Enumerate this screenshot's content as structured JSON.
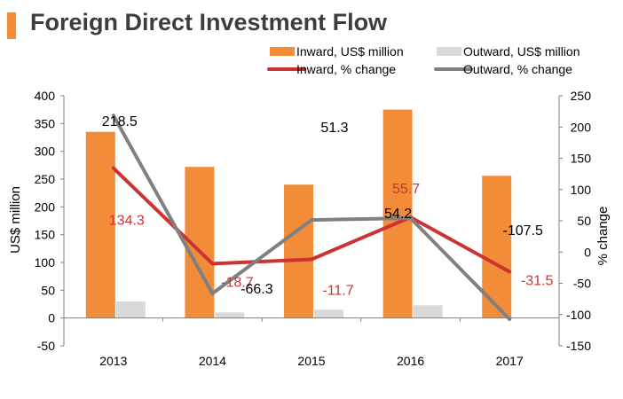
{
  "header": {
    "title": "Foreign Direct Investment Flow"
  },
  "colors": {
    "accent": "#f28c38",
    "inward_bar": "#f28c38",
    "outward_bar": "#d9d9d9",
    "inward_line": "#cc3333",
    "outward_line": "#808080",
    "axis": "#808080",
    "text": "#000000"
  },
  "chart_data": {
    "type": "bar",
    "title": "Foreign Direct Investment Flow",
    "categories": [
      "2013",
      "2014",
      "2015",
      "2016",
      "2017"
    ],
    "series": [
      {
        "name": "Inward, US$ million",
        "kind": "bar",
        "axis": "left",
        "values": [
          335,
          272,
          240,
          375,
          256
        ]
      },
      {
        "name": "Outward, US$ million",
        "kind": "bar",
        "axis": "left",
        "values": [
          30,
          10,
          15,
          23,
          1
        ]
      },
      {
        "name": "Inward, % change",
        "kind": "line",
        "axis": "right",
        "values": [
          134.3,
          -18.7,
          -11.7,
          55.7,
          -31.5
        ],
        "labels": [
          "134.3",
          "-18.7",
          "-11.7",
          "55.7",
          "-31.5"
        ]
      },
      {
        "name": "Outward, % change",
        "kind": "line",
        "axis": "right",
        "values": [
          218.5,
          -66.3,
          51.3,
          54.2,
          -107.5
        ],
        "labels": [
          "218.5",
          "-66.3",
          "51.3",
          "54.2",
          "-107.5"
        ]
      }
    ],
    "ylabel": "US$ million",
    "ylim": [
      -50,
      400
    ],
    "yticks": [
      "400",
      "350",
      "300",
      "250",
      "200",
      "150",
      "100",
      "50",
      "0",
      "-50"
    ],
    "y2label": "% change",
    "y2lim": [
      -150,
      250
    ],
    "y2ticks": [
      "250",
      "200",
      "150",
      "100",
      "50",
      "0",
      "-50",
      "-100",
      "-150"
    ],
    "legend": {
      "position": "top-right",
      "entries": [
        "Inward, US$ million",
        "Outward, US$ million",
        "Inward, % change",
        "Outward, % change"
      ]
    },
    "grid": false
  }
}
